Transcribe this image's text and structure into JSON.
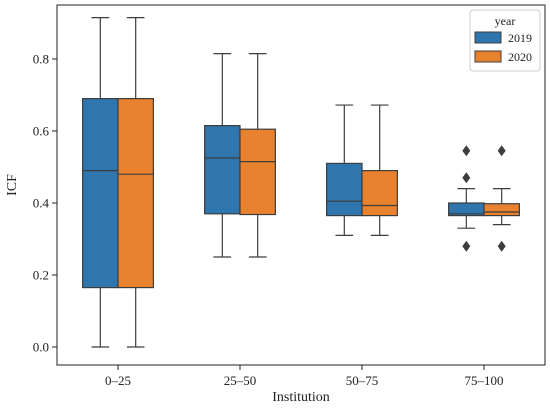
{
  "chart_data": {
    "type": "boxplot",
    "title": "",
    "xlabel": "Institution",
    "ylabel": "ICF",
    "ylim": [
      -0.05,
      0.95
    ],
    "yticks": [
      "0.0",
      "0.2",
      "0.4",
      "0.6",
      "0.8"
    ],
    "categories": [
      "0–25",
      "25–50",
      "50–75",
      "75–100"
    ],
    "legend": {
      "title": "year",
      "position": "top-right"
    },
    "grid": false,
    "series": [
      {
        "name": "2019",
        "color": "#2f76ae",
        "boxes": [
          {
            "min": 0.0,
            "q1": 0.165,
            "median": 0.49,
            "q3": 0.69,
            "max": 0.915,
            "outliers": []
          },
          {
            "min": 0.25,
            "q1": 0.37,
            "median": 0.525,
            "q3": 0.615,
            "max": 0.815,
            "outliers": []
          },
          {
            "min": 0.31,
            "q1": 0.365,
            "median": 0.405,
            "q3": 0.51,
            "max": 0.672,
            "outliers": []
          },
          {
            "min": 0.33,
            "q1": 0.365,
            "median": 0.37,
            "q3": 0.4,
            "max": 0.44,
            "outliers": [
              0.28,
              0.47,
              0.545
            ]
          }
        ]
      },
      {
        "name": "2020",
        "color": "#e9822f",
        "boxes": [
          {
            "min": 0.0,
            "q1": 0.165,
            "median": 0.48,
            "q3": 0.69,
            "max": 0.915,
            "outliers": []
          },
          {
            "min": 0.25,
            "q1": 0.368,
            "median": 0.515,
            "q3": 0.605,
            "max": 0.815,
            "outliers": []
          },
          {
            "min": 0.31,
            "q1": 0.365,
            "median": 0.393,
            "q3": 0.49,
            "max": 0.672,
            "outliers": []
          },
          {
            "min": 0.34,
            "q1": 0.365,
            "median": 0.375,
            "q3": 0.398,
            "max": 0.44,
            "outliers": [
              0.28,
              0.545
            ]
          }
        ]
      }
    ]
  }
}
